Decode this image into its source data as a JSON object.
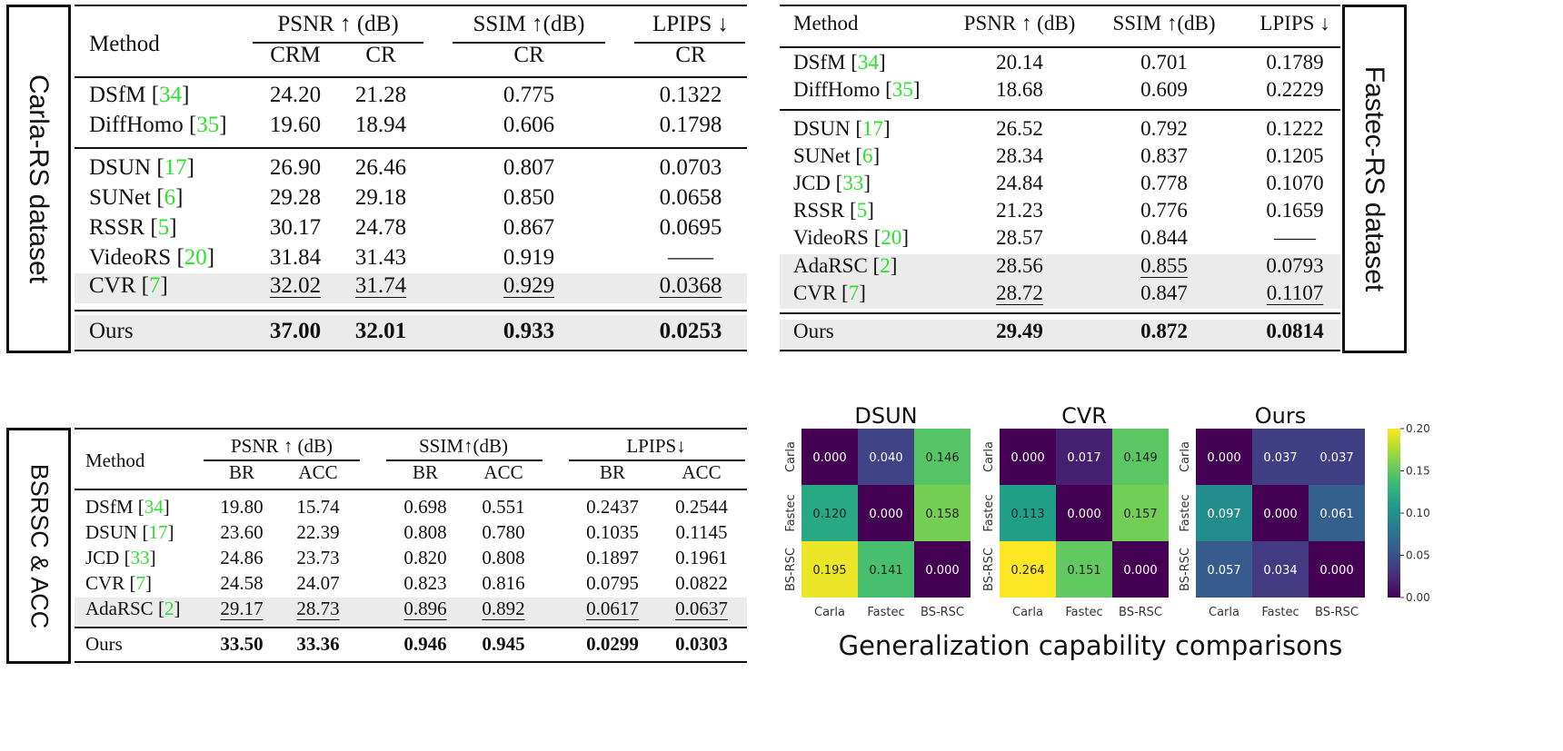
{
  "carla": {
    "side_label": "Carla-RS dataset",
    "col_method": "Method",
    "groups": [
      {
        "label": "PSNR ↑ (dB)",
        "subs": [
          "CRM",
          "CR"
        ]
      },
      {
        "label": "SSIM ↑(dB)",
        "subs": [
          "CR"
        ]
      },
      {
        "label": "LPIPS ↓",
        "subs": [
          "CR"
        ]
      }
    ],
    "rows": [
      {
        "name": "DSfM",
        "ref": "34",
        "vals": [
          "24.20",
          "21.28",
          "0.775",
          "0.1322"
        ]
      },
      {
        "name": "DiffHomo",
        "ref": "35",
        "vals": [
          "19.60",
          "18.94",
          "0.606",
          "0.1798"
        ]
      },
      {
        "name": "DSUN",
        "ref": "17",
        "vals": [
          "26.90",
          "26.46",
          "0.807",
          "0.0703"
        ]
      },
      {
        "name": "SUNet",
        "ref": "6",
        "vals": [
          "29.28",
          "29.18",
          "0.850",
          "0.0658"
        ]
      },
      {
        "name": "RSSR",
        "ref": "5",
        "vals": [
          "30.17",
          "24.78",
          "0.867",
          "0.0695"
        ]
      },
      {
        "name": "VideoRS",
        "ref": "20",
        "vals": [
          "31.84",
          "31.43",
          "0.919",
          "——"
        ]
      },
      {
        "name": "CVR",
        "ref": "7",
        "vals": [
          "32.02",
          "31.74",
          "0.929",
          "0.0368"
        ]
      },
      {
        "name": "Ours",
        "ref": "",
        "vals": [
          "37.00",
          "32.01",
          "0.933",
          "0.0253"
        ]
      }
    ]
  },
  "fastec": {
    "side_label": "Fastec-RS dataset",
    "headers": [
      "Method",
      "PSNR ↑ (dB)",
      "SSIM ↑(dB)",
      "LPIPS ↓"
    ],
    "rows": [
      {
        "name": "DSfM",
        "ref": "34",
        "vals": [
          "20.14",
          "0.701",
          "0.1789"
        ]
      },
      {
        "name": "DiffHomo",
        "ref": "35",
        "vals": [
          "18.68",
          "0.609",
          "0.2229"
        ]
      },
      {
        "name": "DSUN",
        "ref": "17",
        "vals": [
          "26.52",
          "0.792",
          "0.1222"
        ]
      },
      {
        "name": "SUNet",
        "ref": "6",
        "vals": [
          "28.34",
          "0.837",
          "0.1205"
        ]
      },
      {
        "name": "JCD",
        "ref": "33",
        "vals": [
          "24.84",
          "0.778",
          "0.1070"
        ]
      },
      {
        "name": "RSSR",
        "ref": "5",
        "vals": [
          "21.23",
          "0.776",
          "0.1659"
        ]
      },
      {
        "name": "VideoRS",
        "ref": "20",
        "vals": [
          "28.57",
          "0.844",
          "——"
        ]
      },
      {
        "name": "AdaRSC",
        "ref": "2",
        "vals": [
          "28.56",
          "0.855",
          "0.0793"
        ]
      },
      {
        "name": "CVR",
        "ref": "7",
        "vals": [
          "28.72",
          "0.847",
          "0.1107"
        ]
      },
      {
        "name": "Ours",
        "ref": "",
        "vals": [
          "29.49",
          "0.872",
          "0.0814"
        ]
      }
    ]
  },
  "bsrsc": {
    "side_label": "BSRSC & ACC",
    "col_method": "Method",
    "groups": [
      {
        "label": "PSNR ↑ (dB)",
        "subs": [
          "BR",
          "ACC"
        ]
      },
      {
        "label": "SSIM↑(dB)",
        "subs": [
          "BR",
          "ACC"
        ]
      },
      {
        "label": "LPIPS↓",
        "subs": [
          "BR",
          "ACC"
        ]
      }
    ],
    "rows": [
      {
        "name": "DSfM",
        "ref": "34",
        "vals": [
          "19.80",
          "15.74",
          "0.698",
          "0.551",
          "0.2437",
          "0.2544"
        ]
      },
      {
        "name": "DSUN",
        "ref": "17",
        "vals": [
          "23.60",
          "22.39",
          "0.808",
          "0.780",
          "0.1035",
          "0.1145"
        ]
      },
      {
        "name": "JCD",
        "ref": "33",
        "vals": [
          "24.86",
          "23.73",
          "0.820",
          "0.808",
          "0.1897",
          "0.1961"
        ]
      },
      {
        "name": "CVR",
        "ref": "7",
        "vals": [
          "24.58",
          "24.07",
          "0.823",
          "0.816",
          "0.0795",
          "0.0822"
        ]
      },
      {
        "name": "AdaRSC",
        "ref": "2",
        "vals": [
          "29.17",
          "28.73",
          "0.896",
          "0.892",
          "0.0617",
          "0.0637"
        ]
      },
      {
        "name": "Ours",
        "ref": "",
        "vals": [
          "33.50",
          "33.36",
          "0.946",
          "0.945",
          "0.0299",
          "0.0303"
        ]
      }
    ]
  },
  "chart_data": {
    "type": "heatmap",
    "title": "Generalization capability comparisons",
    "labels": [
      "Carla",
      "Fastec",
      "BS-RSC"
    ],
    "colorbar": {
      "min": 0.0,
      "max": 0.2,
      "ticks": [
        "0.00",
        "0.05",
        "0.10",
        "0.15",
        "0.20"
      ],
      "colormap": "viridis"
    },
    "panels": [
      {
        "name": "DSUN",
        "matrix": [
          [
            0.0,
            0.04,
            0.146
          ],
          [
            0.12,
            0.0,
            0.158
          ],
          [
            0.195,
            0.141,
            0.0
          ]
        ]
      },
      {
        "name": "CVR",
        "matrix": [
          [
            0.0,
            0.017,
            0.149
          ],
          [
            0.113,
            0.0,
            0.157
          ],
          [
            0.264,
            0.151,
            0.0
          ]
        ]
      },
      {
        "name": "Ours",
        "matrix": [
          [
            0.0,
            0.037,
            0.037
          ],
          [
            0.097,
            0.0,
            0.061
          ],
          [
            0.057,
            0.034,
            0.0
          ]
        ]
      }
    ]
  }
}
